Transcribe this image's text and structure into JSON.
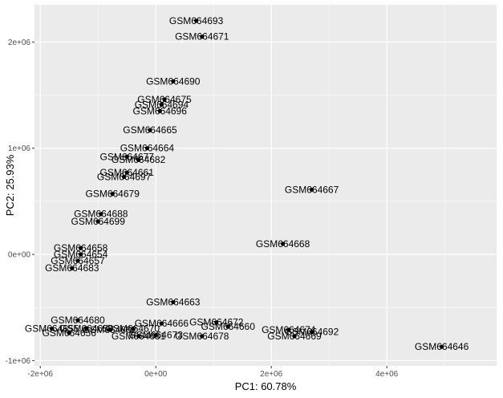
{
  "chart_data": {
    "type": "scatter",
    "title": "",
    "xlabel": "PC1: 60.78%",
    "ylabel": "PC2: 25.93%",
    "xlim": [
      -2100000,
      5900000
    ],
    "ylim": [
      -1050000,
      2350000
    ],
    "x_ticks": [
      {
        "value": -2000000,
        "label": "-2e+06"
      },
      {
        "value": 0,
        "label": "0e+00"
      },
      {
        "value": 2000000,
        "label": "2e+06"
      },
      {
        "value": 4000000,
        "label": "4e+06"
      }
    ],
    "y_ticks": [
      {
        "value": -1000000,
        "label": "-1e+06"
      },
      {
        "value": 0,
        "label": "0e+00"
      },
      {
        "value": 1000000,
        "label": "1e+06"
      },
      {
        "value": 2000000,
        "label": "2e+06"
      }
    ],
    "grid": true,
    "background": "#ebebeb",
    "grid_color": "#ffffff",
    "point_color": "#000000",
    "points": [
      {
        "label": "GSM664693",
        "x": 700000,
        "y": 2200000
      },
      {
        "label": "GSM664671",
        "x": 800000,
        "y": 2050000
      },
      {
        "label": "GSM664690",
        "x": 300000,
        "y": 1630000
      },
      {
        "label": "GSM664675",
        "x": 150000,
        "y": 1460000
      },
      {
        "label": "GSM664694",
        "x": 100000,
        "y": 1410000
      },
      {
        "label": "GSM664696",
        "x": 70000,
        "y": 1350000
      },
      {
        "label": "GSM664665",
        "x": -100000,
        "y": 1170000
      },
      {
        "label": "GSM664664",
        "x": -150000,
        "y": 1000000
      },
      {
        "label": "GSM664677",
        "x": -500000,
        "y": 920000
      },
      {
        "label": "GSM664682",
        "x": -300000,
        "y": 890000
      },
      {
        "label": "GSM664661",
        "x": -500000,
        "y": 770000
      },
      {
        "label": "GSM664697",
        "x": -550000,
        "y": 730000
      },
      {
        "label": "GSM664679",
        "x": -750000,
        "y": 570000
      },
      {
        "label": "GSM664667",
        "x": 2700000,
        "y": 610000
      },
      {
        "label": "GSM664688",
        "x": -950000,
        "y": 380000
      },
      {
        "label": "GSM664699",
        "x": -1000000,
        "y": 310000
      },
      {
        "label": "GSM664668",
        "x": 2200000,
        "y": 100000
      },
      {
        "label": "GSM664658",
        "x": -1300000,
        "y": 60000
      },
      {
        "label": "GSM664654",
        "x": -1300000,
        "y": 0
      },
      {
        "label": "GSM664657",
        "x": -1350000,
        "y": -60000
      },
      {
        "label": "GSM664683",
        "x": -1450000,
        "y": -130000
      },
      {
        "label": "GSM664663",
        "x": 300000,
        "y": -450000
      },
      {
        "label": "GSM664680",
        "x": -1350000,
        "y": -620000
      },
      {
        "label": "GSM664672",
        "x": 1050000,
        "y": -640000
      },
      {
        "label": "GSM664660",
        "x": 1250000,
        "y": -680000
      },
      {
        "label": "GSM664674",
        "x": 2300000,
        "y": -710000
      },
      {
        "label": "GSM664692",
        "x": 2700000,
        "y": -730000
      },
      {
        "label": "GSM664669",
        "x": 2400000,
        "y": -770000
      },
      {
        "label": "GSM664678",
        "x": 800000,
        "y": -770000
      },
      {
        "label": "GSM664666",
        "x": 100000,
        "y": -650000
      },
      {
        "label": "GSM664655",
        "x": -1800000,
        "y": -700000
      },
      {
        "label": "GSM664656",
        "x": -1500000,
        "y": -740000
      },
      {
        "label": "GSM664659",
        "x": -1200000,
        "y": -700000
      },
      {
        "label": "GSM664662",
        "x": -800000,
        "y": -710000
      },
      {
        "label": "GSM664670",
        "x": -400000,
        "y": -700000
      },
      {
        "label": "GSM664673",
        "x": 0,
        "y": -760000
      },
      {
        "label": "GSM664681",
        "x": -300000,
        "y": -770000
      },
      {
        "label": "GSM664646",
        "x": 4950000,
        "y": -870000
      }
    ]
  }
}
